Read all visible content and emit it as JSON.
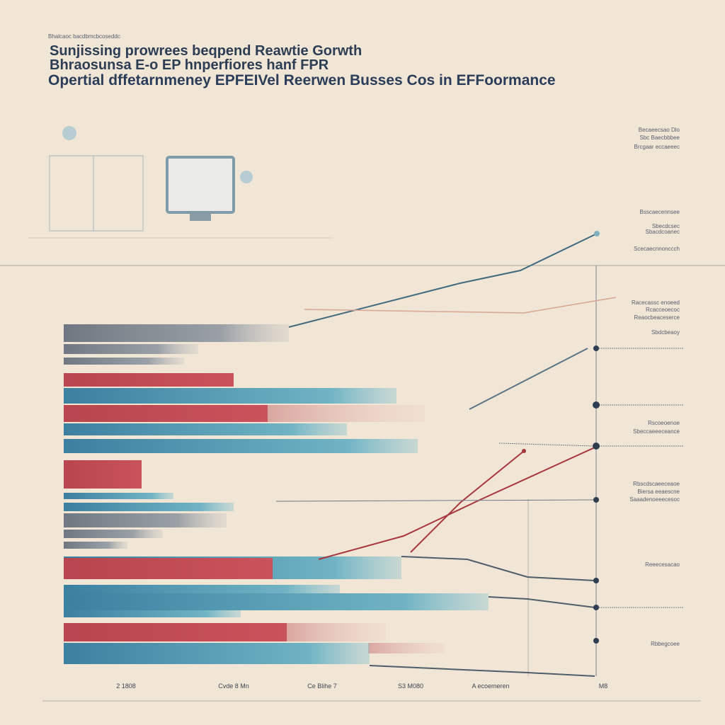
{
  "header": {
    "kicker": "Bhalcaoc bacdbmcbcoseddc",
    "title_lines": [
      "Sunjissing prowrees beqpend Reawtie Gorwth",
      "Bhraosunsa E-o EP hnperfiores hanf FPR",
      "Opertial dffetarnmeney EPFEIVel Reerwen Busses Cos in EFFoormance"
    ]
  },
  "right_labels": [
    "Becaeecsao Dlo",
    "Sbc Baecbbbee",
    "Brcgaar eccaeeec",
    "Bsscaecennsee",
    "Sbecdcsec",
    "Sbacdcoanec",
    "Scecaecnnonccch",
    "Racecassc enoeed",
    "Rcacceoecoc",
    "Reaocbeaceserce",
    "Sbdcbeaoy",
    "Rscoeoenoe",
    "Sbeccaeeeceance",
    "Rbscdscaeeceaoe",
    "Biersa eeaescne",
    "Saaadenoeeecesoc",
    "Reeecesacao",
    "Rbbegcoee"
  ],
  "bottom_labels": [
    "2 1808",
    "Cvde 8 Mn",
    "Ce Blihe 7",
    "S3 M080",
    "A ecoemeren",
    "M8"
  ]
}
